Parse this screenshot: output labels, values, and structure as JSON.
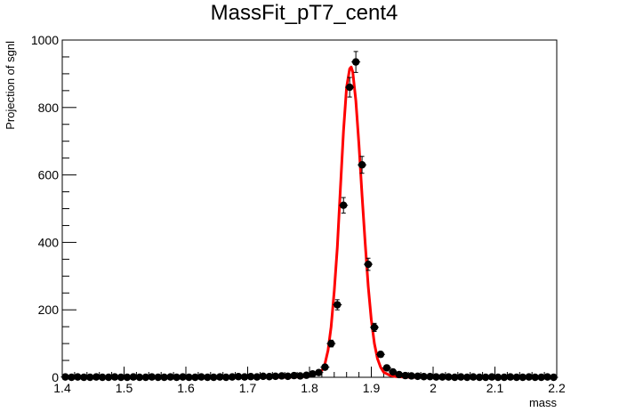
{
  "chart_data": {
    "type": "scatter",
    "title": "MassFit_pT7_cent4",
    "xlabel": "mass",
    "ylabel": "Projection of sgnl",
    "xlim": [
      1.4,
      2.2
    ],
    "ylim": [
      0,
      1000
    ],
    "x_ticks": [
      "1.4",
      "1.5",
      "1.6",
      "1.7",
      "1.8",
      "1.9",
      "2",
      "2.1",
      "2.2"
    ],
    "y_ticks": [
      "0",
      "200",
      "400",
      "600",
      "800",
      "1000"
    ],
    "grid": false,
    "legend": "none",
    "series": [
      {
        "kind": "points-with-errors",
        "color": "#000000",
        "x": [
          1.405,
          1.415,
          1.425,
          1.435,
          1.445,
          1.455,
          1.465,
          1.475,
          1.485,
          1.495,
          1.505,
          1.515,
          1.525,
          1.535,
          1.545,
          1.555,
          1.565,
          1.575,
          1.585,
          1.595,
          1.605,
          1.615,
          1.625,
          1.635,
          1.645,
          1.655,
          1.665,
          1.675,
          1.685,
          1.695,
          1.705,
          1.715,
          1.725,
          1.735,
          1.745,
          1.755,
          1.765,
          1.775,
          1.785,
          1.795,
          1.805,
          1.815,
          1.825,
          1.835,
          1.845,
          1.855,
          1.865,
          1.875,
          1.885,
          1.895,
          1.905,
          1.915,
          1.925,
          1.935,
          1.945,
          1.955,
          1.965,
          1.975,
          1.985,
          1.995,
          2.005,
          2.015,
          2.025,
          2.035,
          2.045,
          2.055,
          2.065,
          2.075,
          2.085,
          2.095,
          2.105,
          2.115,
          2.125,
          2.135,
          2.145,
          2.155,
          2.165,
          2.175,
          2.185,
          2.195
        ],
        "y": [
          1,
          0,
          1,
          0,
          0,
          1,
          0,
          0,
          1,
          0,
          0,
          1,
          0,
          0,
          1,
          0,
          0,
          1,
          0,
          1,
          0,
          0,
          1,
          0,
          0,
          1,
          0,
          1,
          2,
          1,
          2,
          1,
          3,
          2,
          3,
          4,
          3,
          5,
          4,
          6,
          10,
          14,
          30,
          100,
          215,
          510,
          860,
          935,
          630,
          335,
          148,
          68,
          28,
          16,
          8,
          5,
          4,
          3,
          2,
          2,
          1,
          1,
          1,
          0,
          1,
          0,
          1,
          0,
          0,
          1,
          0,
          0,
          1,
          0,
          0,
          1,
          0,
          0,
          1,
          0
        ],
        "errors": [
          1,
          0,
          1,
          0,
          0,
          1,
          0,
          0,
          1,
          0,
          0,
          1,
          0,
          0,
          1,
          0,
          0,
          1,
          0,
          1,
          0,
          0,
          1,
          0,
          0,
          1,
          0,
          1,
          1.5,
          1,
          1.5,
          1,
          2,
          1.5,
          2,
          2,
          2,
          2,
          2,
          3,
          3,
          4,
          6,
          10,
          15,
          23,
          29,
          31,
          25,
          18,
          12,
          8,
          5,
          4,
          3,
          2,
          2,
          2,
          1.5,
          1.5,
          1,
          1,
          1,
          0,
          1,
          0,
          1,
          0,
          0,
          1,
          0,
          0,
          1,
          0,
          0,
          1,
          0,
          0,
          1,
          0
        ]
      },
      {
        "kind": "fit-curve",
        "color": "#ff0000",
        "x": [
          1.4,
          1.75,
          1.78,
          1.79,
          1.8,
          1.81,
          1.82,
          1.825,
          1.83,
          1.835,
          1.84,
          1.845,
          1.85,
          1.855,
          1.86,
          1.865,
          1.8675,
          1.87,
          1.875,
          1.88,
          1.885,
          1.89,
          1.895,
          1.9,
          1.905,
          1.91,
          1.915,
          1.92,
          1.93,
          1.94,
          1.96,
          2.2
        ],
        "y": [
          0,
          0,
          1,
          2,
          5,
          10,
          20,
          40,
          80,
          150,
          255,
          385,
          560,
          730,
          860,
          915,
          920,
          905,
          820,
          690,
          540,
          400,
          270,
          170,
          100,
          55,
          30,
          15,
          6,
          2,
          0,
          0
        ]
      }
    ]
  }
}
